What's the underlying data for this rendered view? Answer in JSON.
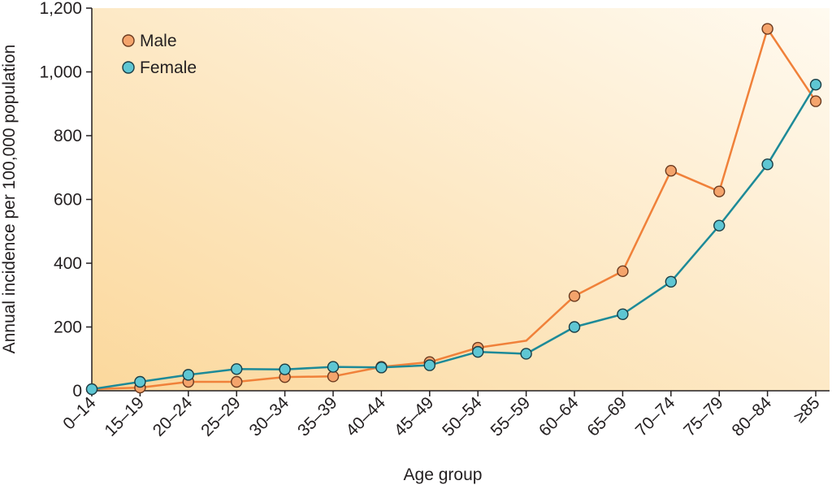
{
  "chart_data": {
    "type": "line",
    "xlabel": "Age group",
    "ylabel": "Annual incidence per 100,000 population",
    "categories": [
      "0–14",
      "15–19",
      "20–24",
      "25–29",
      "30–34",
      "35–39",
      "40–44",
      "45–49",
      "50–54",
      "55–59",
      "60–64",
      "65–69",
      "70–74",
      "75–79",
      "80–84",
      "≥85"
    ],
    "ylim": [
      0,
      1200
    ],
    "yticks": [
      0,
      200,
      400,
      600,
      800,
      1000,
      1200
    ],
    "ytick_labels": [
      "0",
      "200",
      "400",
      "600",
      "800",
      "1,000",
      "1,200"
    ],
    "grid": false,
    "legend_position": "top-left",
    "series": [
      {
        "name": "Male",
        "color": "#f0813a",
        "marker_fill": "#f4a46c",
        "marker_edge": "#6b3a1f",
        "values": [
          5,
          10,
          28,
          28,
          43,
          45,
          75,
          90,
          135,
          157,
          297,
          375,
          690,
          625,
          1135,
          908
        ],
        "markers": [
          true,
          true,
          true,
          true,
          true,
          true,
          true,
          true,
          true,
          false,
          true,
          true,
          true,
          true,
          true,
          true
        ]
      },
      {
        "name": "Female",
        "color": "#1d8a98",
        "marker_fill": "#5ec6d3",
        "marker_edge": "#1a3d45",
        "values": [
          5,
          28,
          50,
          68,
          67,
          75,
          73,
          80,
          122,
          116,
          200,
          240,
          342,
          518,
          710,
          960
        ],
        "markers": [
          true,
          true,
          true,
          true,
          true,
          true,
          true,
          true,
          true,
          true,
          true,
          true,
          true,
          true,
          true,
          true
        ]
      }
    ],
    "background_gradient": [
      "#fbd89c",
      "#fffaf0"
    ],
    "axis_color": "#231f20"
  }
}
